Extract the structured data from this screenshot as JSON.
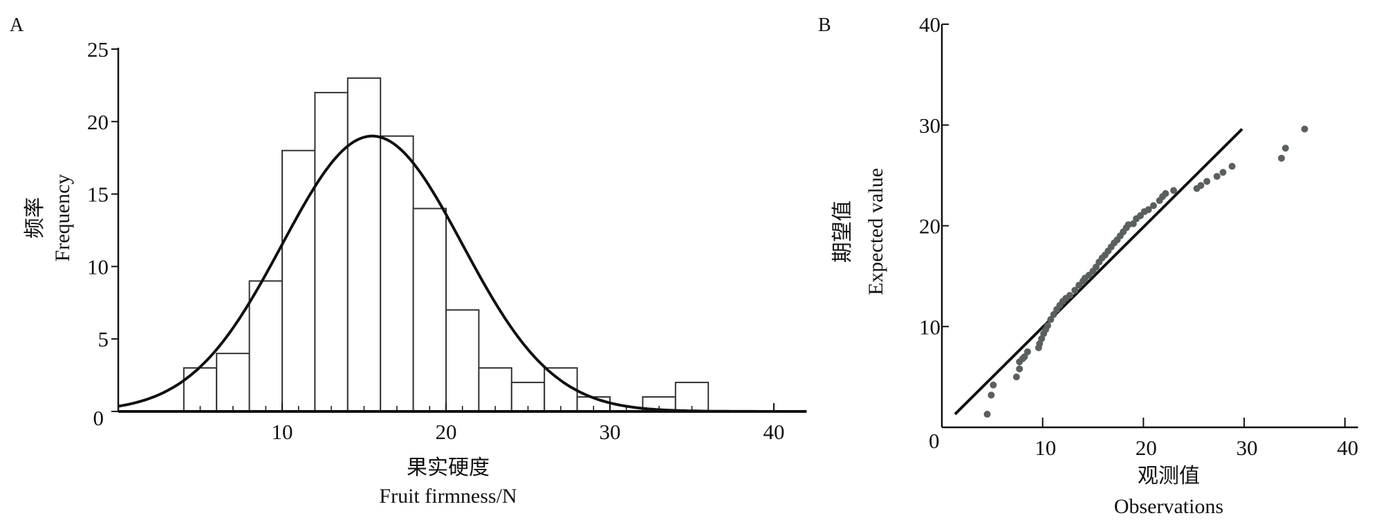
{
  "chart_data": [
    {
      "panel": "A",
      "type": "bar",
      "subtype": "histogram-with-normal-curve",
      "xlabel_cn": "果实硬度",
      "xlabel": "Fruit firmness/N",
      "ylabel_cn": "频率",
      "ylabel": "Frequency",
      "xlim": [
        0,
        42
      ],
      "ylim": [
        0,
        25
      ],
      "xticks": [
        10,
        20,
        30,
        40
      ],
      "yticks": [
        0,
        5,
        10,
        15,
        20,
        25
      ],
      "bins": [
        [
          4,
          6
        ],
        [
          6,
          8
        ],
        [
          8,
          10
        ],
        [
          10,
          12
        ],
        [
          12,
          14
        ],
        [
          14,
          16
        ],
        [
          16,
          18
        ],
        [
          18,
          20
        ],
        [
          20,
          22
        ],
        [
          22,
          24
        ],
        [
          24,
          26
        ],
        [
          26,
          28
        ],
        [
          28,
          30
        ],
        [
          30,
          32
        ],
        [
          32,
          34
        ],
        [
          34,
          36
        ]
      ],
      "values": [
        3,
        4,
        9,
        18,
        22,
        23,
        19,
        14,
        7,
        3,
        2,
        3,
        1,
        0,
        1,
        2
      ],
      "normal_curve": {
        "mean": 15.5,
        "sd": 5.5,
        "peak": 19
      },
      "grid": false
    },
    {
      "panel": "B",
      "type": "scatter",
      "subtype": "q-q plot",
      "xlabel_cn": "观测值",
      "xlabel": "Observations",
      "ylabel_cn": "期望值",
      "ylabel": "Expected value",
      "xlim": [
        0,
        41.3
      ],
      "ylim": [
        0,
        40
      ],
      "xticks": [
        10,
        20,
        30,
        40
      ],
      "yticks": [
        10,
        20,
        30,
        40
      ],
      "origin_label": "0",
      "reference_line": {
        "x": [
          1.3,
          29.8
        ],
        "y": [
          1.3,
          29.6
        ]
      },
      "points": [
        [
          4.5,
          1.3
        ],
        [
          4.9,
          3.2
        ],
        [
          5.1,
          4.2
        ],
        [
          7.4,
          5.0
        ],
        [
          7.7,
          5.8
        ],
        [
          7.7,
          6.5
        ],
        [
          8.0,
          6.8
        ],
        [
          8.2,
          7.0
        ],
        [
          8.5,
          7.5
        ],
        [
          9.6,
          7.9
        ],
        [
          9.7,
          8.3
        ],
        [
          9.9,
          8.8
        ],
        [
          10.1,
          9.3
        ],
        [
          10.3,
          9.7
        ],
        [
          10.5,
          10.1
        ],
        [
          10.8,
          10.7
        ],
        [
          11.1,
          11.2
        ],
        [
          11.4,
          11.7
        ],
        [
          11.7,
          12.1
        ],
        [
          12.0,
          12.5
        ],
        [
          12.3,
          12.8
        ],
        [
          12.7,
          13.1
        ],
        [
          13.2,
          13.6
        ],
        [
          13.6,
          14.1
        ],
        [
          14.0,
          14.5
        ],
        [
          14.2,
          14.8
        ],
        [
          14.6,
          15.1
        ],
        [
          15.0,
          15.5
        ],
        [
          15.3,
          15.9
        ],
        [
          15.6,
          16.4
        ],
        [
          15.9,
          16.8
        ],
        [
          16.2,
          17.1
        ],
        [
          16.5,
          17.5
        ],
        [
          16.8,
          17.9
        ],
        [
          17.1,
          18.3
        ],
        [
          17.4,
          18.6
        ],
        [
          17.7,
          19.0
        ],
        [
          18.0,
          19.4
        ],
        [
          18.3,
          19.8
        ],
        [
          18.5,
          20.1
        ],
        [
          19.0,
          20.2
        ],
        [
          19.3,
          20.7
        ],
        [
          19.7,
          21.0
        ],
        [
          20.1,
          21.4
        ],
        [
          20.5,
          21.6
        ],
        [
          21.0,
          22.0
        ],
        [
          21.6,
          22.5
        ],
        [
          21.9,
          22.9
        ],
        [
          22.2,
          23.2
        ],
        [
          23.0,
          23.5
        ],
        [
          25.3,
          23.7
        ],
        [
          25.7,
          24.0
        ],
        [
          26.3,
          24.4
        ],
        [
          27.3,
          24.9
        ],
        [
          27.9,
          25.3
        ],
        [
          28.8,
          25.9
        ],
        [
          33.7,
          26.7
        ],
        [
          34.1,
          27.7
        ],
        [
          36.0,
          29.6
        ]
      ],
      "grid": false
    }
  ],
  "panels": {
    "a": "A",
    "b": "B"
  },
  "colors": {
    "axis": "#111111",
    "bar_edge": "#333333",
    "curve": "#111111",
    "point": "#5a605e"
  }
}
